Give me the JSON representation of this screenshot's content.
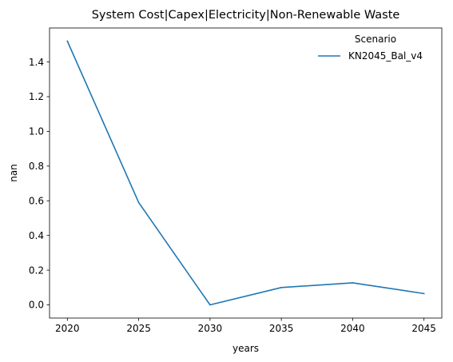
{
  "chart_data": {
    "type": "line",
    "title": "System Cost|Capex|Electricity|Non-Renewable Waste",
    "xlabel": "years",
    "ylabel": "nan",
    "x": [
      2020,
      2025,
      2030,
      2035,
      2040,
      2045
    ],
    "series": [
      {
        "name": "KN2045_Bal_v4",
        "color": "#1f77b4",
        "values": [
          1.52,
          0.59,
          0.0,
          0.1,
          0.127,
          0.065
        ]
      }
    ],
    "xlim": [
      2018.75,
      2046.25
    ],
    "ylim": [
      -0.076,
      1.596
    ],
    "xticks": [
      2020,
      2025,
      2030,
      2035,
      2040,
      2045
    ],
    "xtick_labels": [
      "2020",
      "2025",
      "2030",
      "2035",
      "2040",
      "2045"
    ],
    "yticks": [
      0.0,
      0.2,
      0.4,
      0.6,
      0.8,
      1.0,
      1.2,
      1.4
    ],
    "ytick_labels": [
      "0.0",
      "0.2",
      "0.4",
      "0.6",
      "0.8",
      "1.0",
      "1.2",
      "1.4"
    ],
    "grid": false,
    "legend": {
      "title": "Scenario",
      "placement": "top-right",
      "frame": false
    }
  }
}
